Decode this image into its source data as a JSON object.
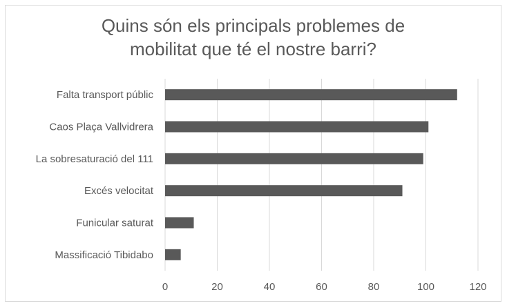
{
  "chart_data": {
    "type": "bar",
    "orientation": "horizontal",
    "title_lines": [
      "Quins són els principals problemes de",
      "mobilitat que té el nostre barri?"
    ],
    "categories": [
      "Falta transport públic",
      "Caos Plaça Vallvidrera",
      "La sobresaturació del 111",
      "Excés velocitat",
      "Funicular saturat",
      "Massificació Tibidabo"
    ],
    "values": [
      112,
      101,
      99,
      91,
      11,
      6
    ],
    "xlim": [
      0,
      120
    ],
    "xticks": [
      "0",
      "20",
      "40",
      "60",
      "80",
      "100",
      "120"
    ],
    "grid": "vertical",
    "legend": "none",
    "colors": {
      "bar": "#595959",
      "grid": "#d9d9d9",
      "text": "#595959"
    }
  }
}
